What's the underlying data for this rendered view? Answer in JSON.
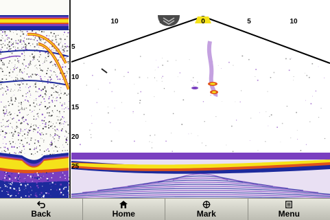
{
  "depth_scale": {
    "ticks": [
      "5",
      "10",
      "15",
      "20",
      "25"
    ]
  },
  "range_scale": {
    "ticks": [
      "10",
      "5",
      "0",
      "5",
      "10"
    ]
  },
  "toolbar": {
    "buttons": [
      {
        "label": "Back",
        "icon": "back-arrow-icon"
      },
      {
        "label": "Home",
        "icon": "home-icon"
      },
      {
        "label": "Mark",
        "icon": "waypoint-crosshair-icon"
      },
      {
        "label": "Menu",
        "icon": "menu-list-icon"
      }
    ]
  },
  "colors": {
    "sonar_yellow": "#f5e21a",
    "sonar_orange": "#e0531b",
    "sonar_purple": "#7a3fc0",
    "sonar_blue": "#1c2a9c",
    "toolbar_bg": "#d2d2c8"
  }
}
